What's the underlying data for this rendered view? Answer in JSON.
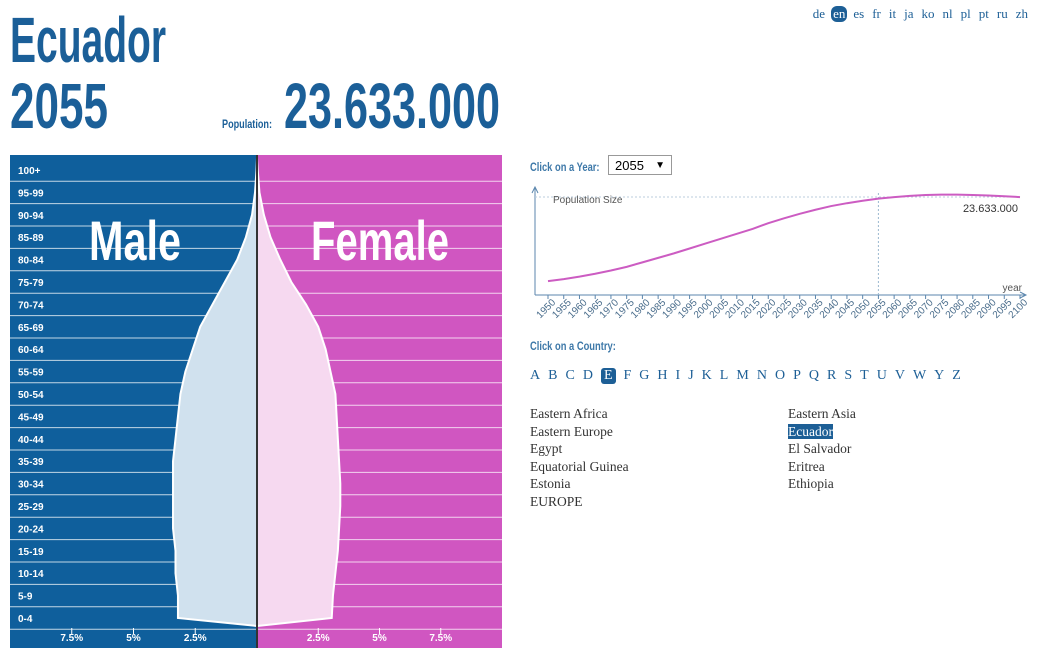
{
  "header": {
    "title": "Ecuador",
    "year": "2055",
    "population_label": "Population:",
    "population": "23.633.000"
  },
  "languages": {
    "items": [
      "de",
      "en",
      "es",
      "fr",
      "it",
      "ja",
      "ko",
      "nl",
      "pl",
      "pt",
      "ru",
      "zh"
    ],
    "selected": 1
  },
  "year_selector": {
    "label": "Click on a Year:"
  },
  "country_selector": {
    "label": "Click on a Country:",
    "letters": [
      "A",
      "B",
      "C",
      "D",
      "E",
      "F",
      "G",
      "H",
      "I",
      "J",
      "K",
      "L",
      "M",
      "N",
      "O",
      "P",
      "Q",
      "R",
      "S",
      "T",
      "U",
      "V",
      "W",
      "Y",
      "Z"
    ],
    "selected_letter": 4,
    "columns": [
      [
        "Eastern Africa",
        "Eastern Europe",
        "Egypt",
        "Equatorial Guinea",
        "Estonia",
        "EUROPE"
      ],
      [
        "Eastern Asia",
        "Ecuador",
        "El Salvador",
        "Eritrea",
        "Ethiopia"
      ]
    ],
    "selected": [
      1,
      1
    ]
  },
  "chart_data": [
    {
      "type": "pyramid",
      "categories": [
        "100+",
        "95-99",
        "90-94",
        "85-89",
        "80-84",
        "75-79",
        "70-74",
        "65-69",
        "60-64",
        "55-59",
        "50-54",
        "45-49",
        "40-44",
        "35-39",
        "30-34",
        "25-29",
        "20-24",
        "15-19",
        "10-14",
        "5-9",
        "0-4"
      ],
      "series": [
        {
          "name": "Male",
          "color": "#d0e1ee",
          "values": [
            0.02,
            0.08,
            0.2,
            0.45,
            0.8,
            1.3,
            1.8,
            2.3,
            2.6,
            2.9,
            3.1,
            3.2,
            3.3,
            3.4,
            3.4,
            3.4,
            3.4,
            3.3,
            3.3,
            3.2,
            3.2
          ]
        },
        {
          "name": "Female",
          "color": "#f6d9f0",
          "values": [
            0.03,
            0.1,
            0.28,
            0.55,
            0.95,
            1.4,
            2.0,
            2.5,
            2.8,
            3.0,
            3.2,
            3.25,
            3.3,
            3.35,
            3.4,
            3.4,
            3.35,
            3.3,
            3.2,
            3.1,
            3.05
          ]
        }
      ],
      "xlim": [
        0,
        10
      ],
      "left_xticks": [
        {
          "value": 7.5,
          "label": "7.5%"
        },
        {
          "value": 5,
          "label": "5%"
        },
        {
          "value": 2.5,
          "label": "2.5%"
        }
      ],
      "right_xticks": [
        {
          "value": 2.5,
          "label": "2.5%"
        },
        {
          "value": 5,
          "label": "5%"
        },
        {
          "value": 7.5,
          "label": "7.5%"
        }
      ]
    },
    {
      "type": "line",
      "ylabel": "Population Size",
      "xlabel": "year",
      "x": [
        1950,
        1955,
        1960,
        1965,
        1970,
        1975,
        1980,
        1985,
        1990,
        1995,
        2000,
        2005,
        2010,
        2015,
        2020,
        2025,
        2030,
        2035,
        2040,
        2045,
        2050,
        2055,
        2060,
        2065,
        2070,
        2075,
        2080,
        2085,
        2090,
        2095,
        2100
      ],
      "series": [
        {
          "name": "Population Size",
          "color": "#cc5cc2",
          "values": [
            3400000,
            3900000,
            4500000,
            5200000,
            6000000,
            6900000,
            8000000,
            9100000,
            10200000,
            11400000,
            12600000,
            13800000,
            15000000,
            16200000,
            17600000,
            18800000,
            19900000,
            20900000,
            21800000,
            22500000,
            23100000,
            23633000,
            24000000,
            24300000,
            24500000,
            24600000,
            24600000,
            24500000,
            24400000,
            24200000,
            24000000
          ]
        }
      ],
      "xlim": [
        1950,
        2100
      ],
      "xticks": [
        1950,
        1955,
        1960,
        1965,
        1970,
        1975,
        1980,
        1985,
        1990,
        1995,
        2000,
        2005,
        2010,
        2015,
        2020,
        2025,
        2030,
        2035,
        2040,
        2045,
        2050,
        2055,
        2060,
        2065,
        2070,
        2075,
        2080,
        2085,
        2090,
        2095,
        2100
      ],
      "ylim": [
        0,
        25000000
      ]
    }
  ]
}
